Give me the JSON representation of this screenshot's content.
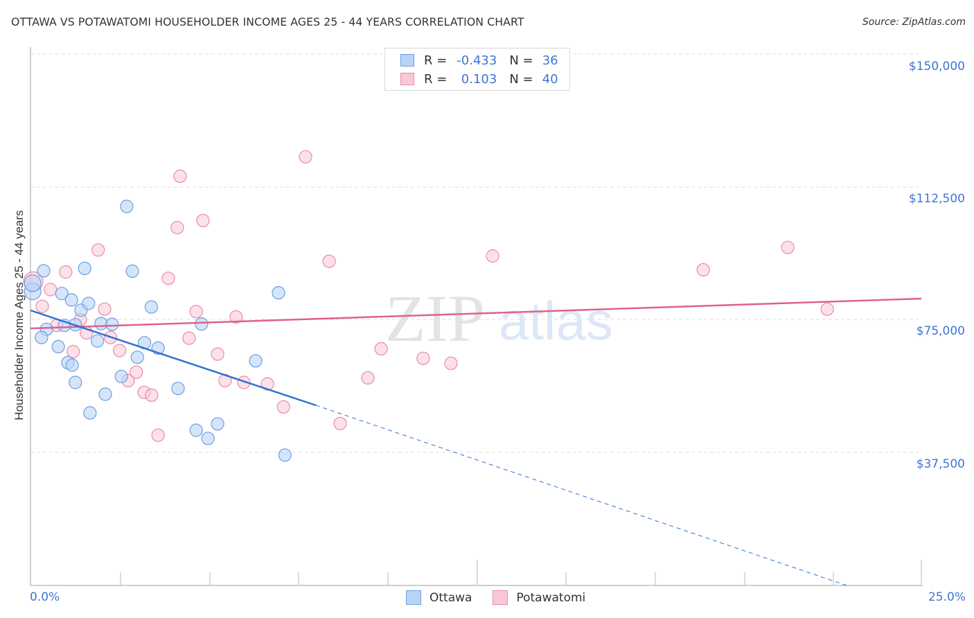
{
  "header": {
    "title": "OTTAWA VS POTAWATOMI HOUSEHOLDER INCOME AGES 25 - 44 YEARS CORRELATION CHART",
    "source": "Source: ZipAtlas.com"
  },
  "watermark": {
    "zip": "ZIP",
    "atlas": "atlas"
  },
  "legend": {
    "series": [
      {
        "name": "Ottawa",
        "r_label": "R =",
        "r_value": "-0.433",
        "n_label": "N =",
        "n_value": "36",
        "fill": "#b9d3f5",
        "stroke": "#6a9ee0"
      },
      {
        "name": "Potawatomi",
        "r_label": "R =",
        "r_value": "0.103",
        "n_label": "N =",
        "n_value": "40",
        "fill": "#f9c8d7",
        "stroke": "#e88aa8"
      }
    ]
  },
  "axes": {
    "ylabel": "Householder Income Ages 25 - 44 years",
    "yticks": [
      "$150,000",
      "$112,500",
      "$75,000",
      "$37,500"
    ],
    "xticks": [
      "0.0%",
      "25.0%"
    ]
  },
  "colors": {
    "ottawa_line": "#2f6fd6",
    "potawatomi_line": "#e0608e",
    "axis_text": "#3f75d1",
    "grid": "#d9d9d9"
  },
  "chart_data": {
    "type": "scatter",
    "title": "OTTAWA VS POTAWATOMI HOUSEHOLDER INCOME AGES 25 - 44 YEARS CORRELATION CHART",
    "xlabel": "",
    "ylabel": "Householder Income Ages 25 - 44 years",
    "xlim": [
      0,
      25
    ],
    "ylim": [
      0,
      150000
    ],
    "x_unit": "%",
    "ytick_values": [
      37500,
      75000,
      112500,
      150000
    ],
    "grid": true,
    "legend_position": "top-center",
    "series": [
      {
        "name": "Ottawa",
        "R": -0.433,
        "N": 36,
        "trend": {
          "x0": 0,
          "y0": 77700,
          "x1": 8.0,
          "y1": 50900,
          "dashed_extension_to": [
            22.9,
            0
          ]
        },
        "points": [
          [
            0.06,
            83000
          ],
          [
            0.06,
            85300
          ],
          [
            0.37,
            88800
          ],
          [
            0.45,
            72300
          ],
          [
            0.88,
            82400
          ],
          [
            1.15,
            80600
          ],
          [
            1.26,
            73600
          ],
          [
            1.42,
            77700
          ],
          [
            1.52,
            89500
          ],
          [
            1.63,
            79600
          ],
          [
            0.31,
            70000
          ],
          [
            0.78,
            67400
          ],
          [
            0.95,
            73400
          ],
          [
            1.05,
            62900
          ],
          [
            1.17,
            62200
          ],
          [
            1.26,
            57300
          ],
          [
            1.67,
            48700
          ],
          [
            1.88,
            69000
          ],
          [
            1.98,
            73900
          ],
          [
            2.1,
            54000
          ],
          [
            2.29,
            73700
          ],
          [
            2.55,
            59000
          ],
          [
            2.7,
            107000
          ],
          [
            2.86,
            88700
          ],
          [
            3.0,
            64400
          ],
          [
            3.2,
            68500
          ],
          [
            3.39,
            78600
          ],
          [
            3.58,
            67000
          ],
          [
            4.14,
            55600
          ],
          [
            4.65,
            43800
          ],
          [
            4.8,
            73800
          ],
          [
            4.98,
            41500
          ],
          [
            5.25,
            45600
          ],
          [
            6.32,
            63400
          ],
          [
            6.96,
            82600
          ],
          [
            7.14,
            36800
          ]
        ]
      },
      {
        "name": "Potawatomi",
        "R": 0.103,
        "N": 40,
        "trend": {
          "x0": 0,
          "y0": 72500,
          "x1": 25,
          "y1": 81000
        },
        "points": [
          [
            0.08,
            85800
          ],
          [
            0.33,
            78800
          ],
          [
            0.56,
            83500
          ],
          [
            0.74,
            73400
          ],
          [
            0.99,
            88500
          ],
          [
            1.2,
            66000
          ],
          [
            1.4,
            75000
          ],
          [
            1.57,
            71300
          ],
          [
            1.9,
            94700
          ],
          [
            2.08,
            78000
          ],
          [
            2.25,
            70000
          ],
          [
            2.5,
            66300
          ],
          [
            2.74,
            57800
          ],
          [
            2.97,
            60200
          ],
          [
            3.19,
            54500
          ],
          [
            3.4,
            53700
          ],
          [
            3.58,
            42400
          ],
          [
            3.87,
            86700
          ],
          [
            4.12,
            101000
          ],
          [
            4.2,
            115500
          ],
          [
            4.45,
            69800
          ],
          [
            4.65,
            77300
          ],
          [
            4.84,
            103000
          ],
          [
            5.25,
            65300
          ],
          [
            5.46,
            57800
          ],
          [
            5.77,
            75800
          ],
          [
            5.99,
            57300
          ],
          [
            6.65,
            56900
          ],
          [
            7.1,
            50400
          ],
          [
            7.72,
            121000
          ],
          [
            8.38,
            91500
          ],
          [
            8.69,
            45700
          ],
          [
            9.47,
            58600
          ],
          [
            9.84,
            66800
          ],
          [
            11.02,
            64100
          ],
          [
            11.8,
            62700
          ],
          [
            12.97,
            93000
          ],
          [
            18.88,
            89100
          ],
          [
            21.25,
            95400
          ],
          [
            22.36,
            78000
          ]
        ]
      }
    ]
  }
}
